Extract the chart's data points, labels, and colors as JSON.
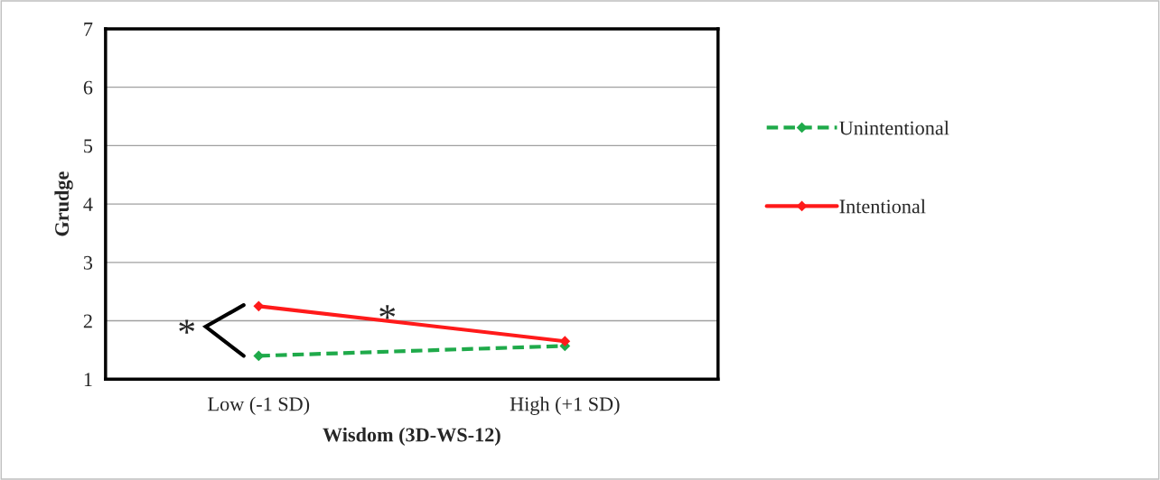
{
  "chart_data": {
    "type": "line",
    "xlabel": "Wisdom (3D-WS-12)",
    "ylabel": "Grudge",
    "categories": [
      "Low (-1 SD)",
      "High (+1 SD)"
    ],
    "series": [
      {
        "name": "Unintentional",
        "color": "#1faa4a",
        "values": [
          1.4,
          1.57
        ],
        "line_style": "dashed"
      },
      {
        "name": "Intentional",
        "color": "#ff1a1a",
        "values": [
          2.25,
          1.65
        ],
        "line_style": "solid"
      }
    ],
    "ylim": [
      1,
      7
    ],
    "yticks": [
      1,
      2,
      3,
      4,
      5,
      6,
      7
    ],
    "grid": "y",
    "legend": "right",
    "marker": "diamond",
    "annotations": [
      "*",
      "*"
    ]
  }
}
